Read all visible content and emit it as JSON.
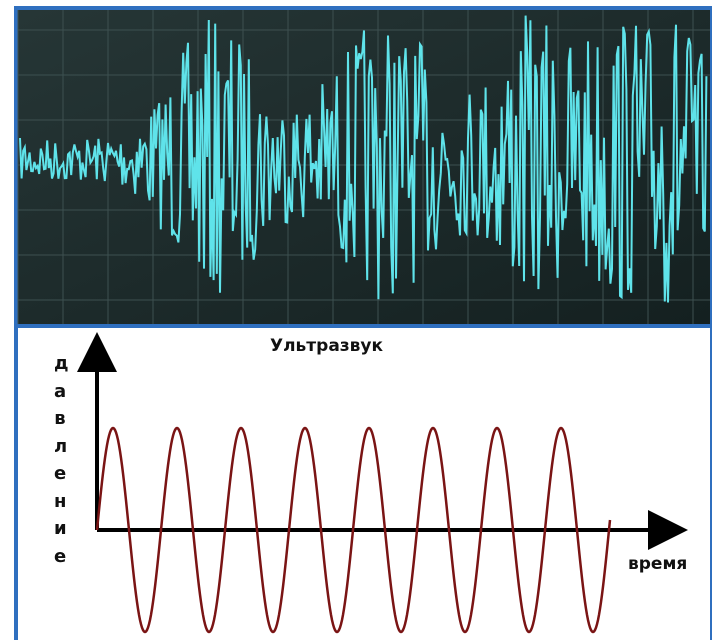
{
  "title": "Ультразвук",
  "y_axis_label": "давление",
  "x_axis_label": "время"
}
